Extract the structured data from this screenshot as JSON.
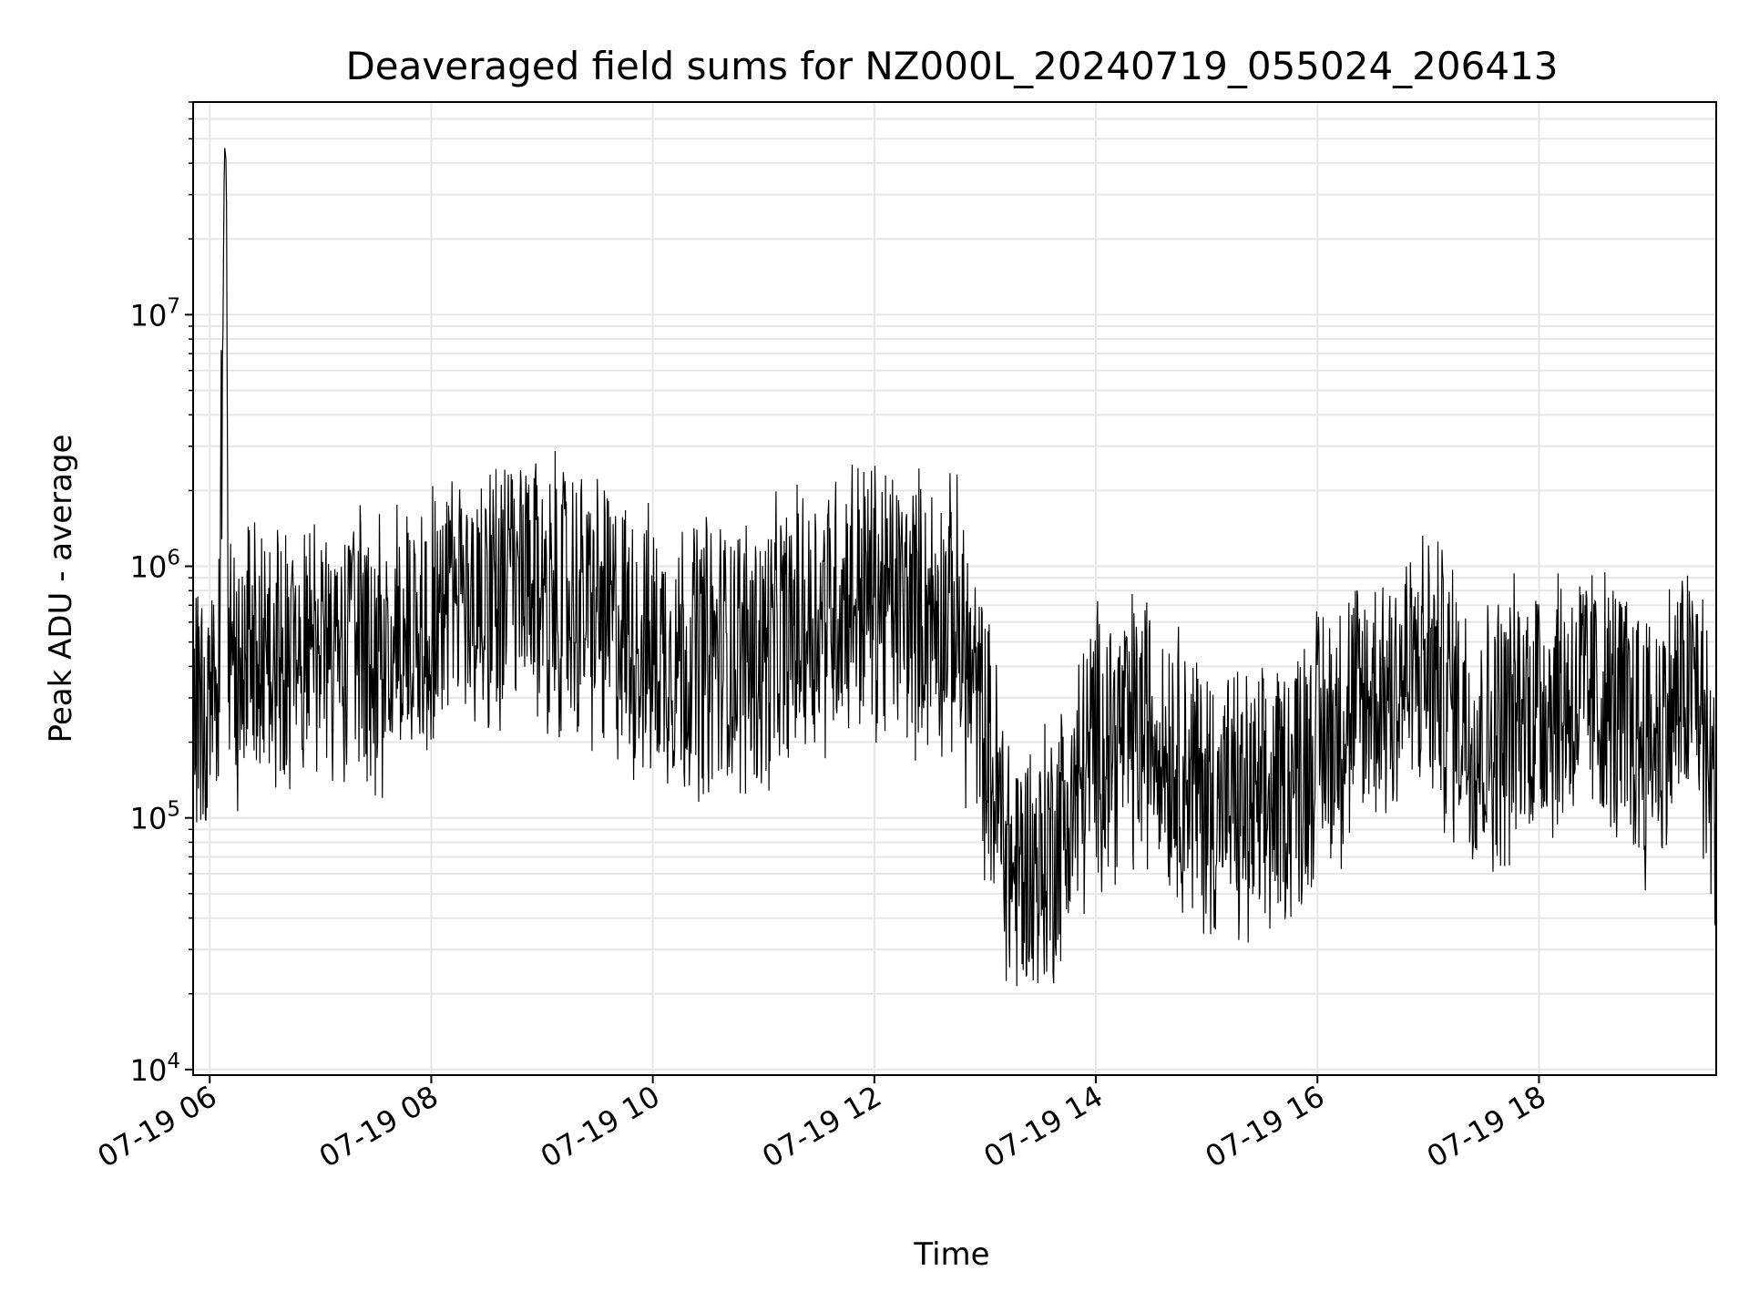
{
  "chart_data": {
    "type": "line",
    "title": "Deaveraged field sums for NZ000L_20240719_055024_206413",
    "xlabel": "Time",
    "ylabel": "Peak ADU - average",
    "y_scale": "log",
    "ylim": [
      9500,
      70000000
    ],
    "xlim": [
      "07-19 05:51",
      "07-19 19:36"
    ],
    "grid": true,
    "line_color": "#000000",
    "x_ticks": [
      "07-19 06",
      "07-19 08",
      "07-19 10",
      "07-19 12",
      "07-19 14",
      "07-19 16",
      "07-19 18"
    ],
    "y_ticks": [
      {
        "base": "10",
        "exp": "4",
        "value": 10000
      },
      {
        "base": "10",
        "exp": "5",
        "value": 100000
      },
      {
        "base": "10",
        "exp": "6",
        "value": 1000000
      },
      {
        "base": "10",
        "exp": "7",
        "value": 10000000
      }
    ],
    "series": [
      {
        "points": [
          [
            "07-19 05:51",
            180000
          ],
          [
            "07-19 06:00",
            300000
          ],
          [
            "07-19 06:05",
            350000
          ],
          [
            "07-19 06:08",
            47000000
          ],
          [
            "07-19 06:09",
            40000000
          ],
          [
            "07-19 06:10",
            400000
          ],
          [
            "07-19 06:30",
            500000
          ],
          [
            "07-19 07:00",
            450000
          ],
          [
            "07-19 07:30",
            450000
          ],
          [
            "07-19 08:00",
            650000
          ],
          [
            "07-19 08:30",
            800000
          ],
          [
            "07-19 09:00",
            800000
          ],
          [
            "07-19 09:30",
            650000
          ],
          [
            "07-19 10:00",
            450000
          ],
          [
            "07-19 10:30",
            450000
          ],
          [
            "07-19 11:00",
            450000
          ],
          [
            "07-19 11:30",
            650000
          ],
          [
            "07-19 11:50",
            800000
          ],
          [
            "07-19 12:15",
            700000
          ],
          [
            "07-19 12:45",
            600000
          ],
          [
            "07-19 13:00",
            200000
          ],
          [
            "07-19 13:15",
            60000
          ],
          [
            "07-19 13:30",
            65000
          ],
          [
            "07-19 13:45",
            100000
          ],
          [
            "07-19 14:00",
            200000
          ],
          [
            "07-19 14:30",
            230000
          ],
          [
            "07-19 15:00",
            120000
          ],
          [
            "07-19 15:30",
            100000
          ],
          [
            "07-19 16:00",
            200000
          ],
          [
            "07-19 16:30",
            300000
          ],
          [
            "07-19 17:00",
            400000
          ],
          [
            "07-19 17:30",
            200000
          ],
          [
            "07-19 18:00",
            300000
          ],
          [
            "07-19 18:30",
            300000
          ],
          [
            "07-19 19:00",
            200000
          ],
          [
            "07-19 19:25",
            350000
          ],
          [
            "07-19 19:36",
            100000
          ]
        ]
      }
    ]
  }
}
